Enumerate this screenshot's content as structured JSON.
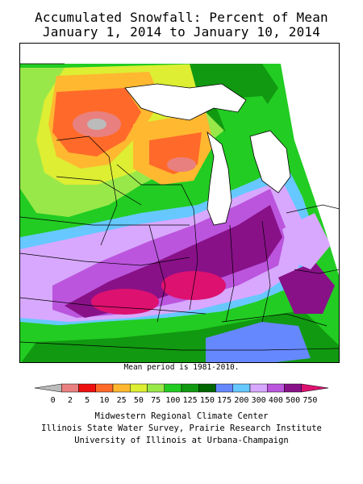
{
  "title": {
    "line1": "Accumulated Snowfall: Percent of Mean",
    "line2": "January 1, 2014 to January 10, 2014"
  },
  "note": "Mean period is 1981-2010.",
  "legend": {
    "labels": [
      "0",
      "2",
      "5",
      "10",
      "25",
      "50",
      "75",
      "100",
      "125",
      "150",
      "175",
      "200",
      "300",
      "400",
      "500",
      "750"
    ],
    "colors": [
      "#bbbbbb",
      "#e98080",
      "#ee1010",
      "#ff6a2a",
      "#ffb830",
      "#ddee33",
      "#99e84a",
      "#22cc22",
      "#119911",
      "#006600",
      "#6688ff",
      "#66c8ff",
      "#d8a8ff",
      "#bb55dd",
      "#881188",
      "#dd1170"
    ]
  },
  "credits": {
    "line1": "Midwestern Regional Climate Center",
    "line2": "Illinois State Water Survey, Prairie Research Institute",
    "line3": "University of Illinois at Urbana-Champaign"
  }
}
